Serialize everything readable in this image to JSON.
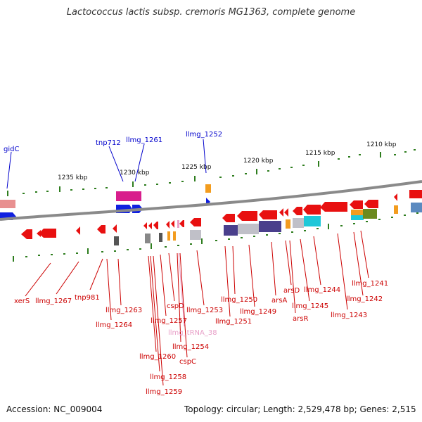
{
  "title": "Lactococcus lactis subsp. cremoris MG1363, complete genome",
  "footer": {
    "accession": "Accession: NC_009004",
    "topology": "Topology: circular; Length: 2,529,478 bp; Genes: 2,515"
  },
  "scale_ticks": [
    "1235 kbp",
    "1230 kbp",
    "1225 kbp",
    "1220 kbp",
    "1215 kbp",
    "1210 kbp"
  ],
  "colors": {
    "forward_label": "#0000cc",
    "reverse_label": "#cc0000",
    "trna_label": "#e8a0c8",
    "tick_green": "#2e7d1e",
    "backbone": "#777777"
  },
  "forward_labels": [
    "gidC",
    "tnp712",
    "llmg_1261",
    "llmg_1252"
  ],
  "reverse_labels": [
    "xerS",
    "llmg_1267",
    "tnp981",
    "llmg_1263",
    "llmg_1264",
    "llmg_1260",
    "llmg_1258",
    "llmg_1259",
    "llmg_1257",
    "cspD",
    "llmg_tRNA_38",
    "llmg_1254",
    "cspC",
    "llmg_1253",
    "llmg_1250",
    "llmg_1251",
    "llmg_1249",
    "arsA",
    "arsD",
    "arsR",
    "llmg_1245",
    "llmg_1244",
    "llmg_1243",
    "llmg_1242",
    "llmg_1241"
  ]
}
